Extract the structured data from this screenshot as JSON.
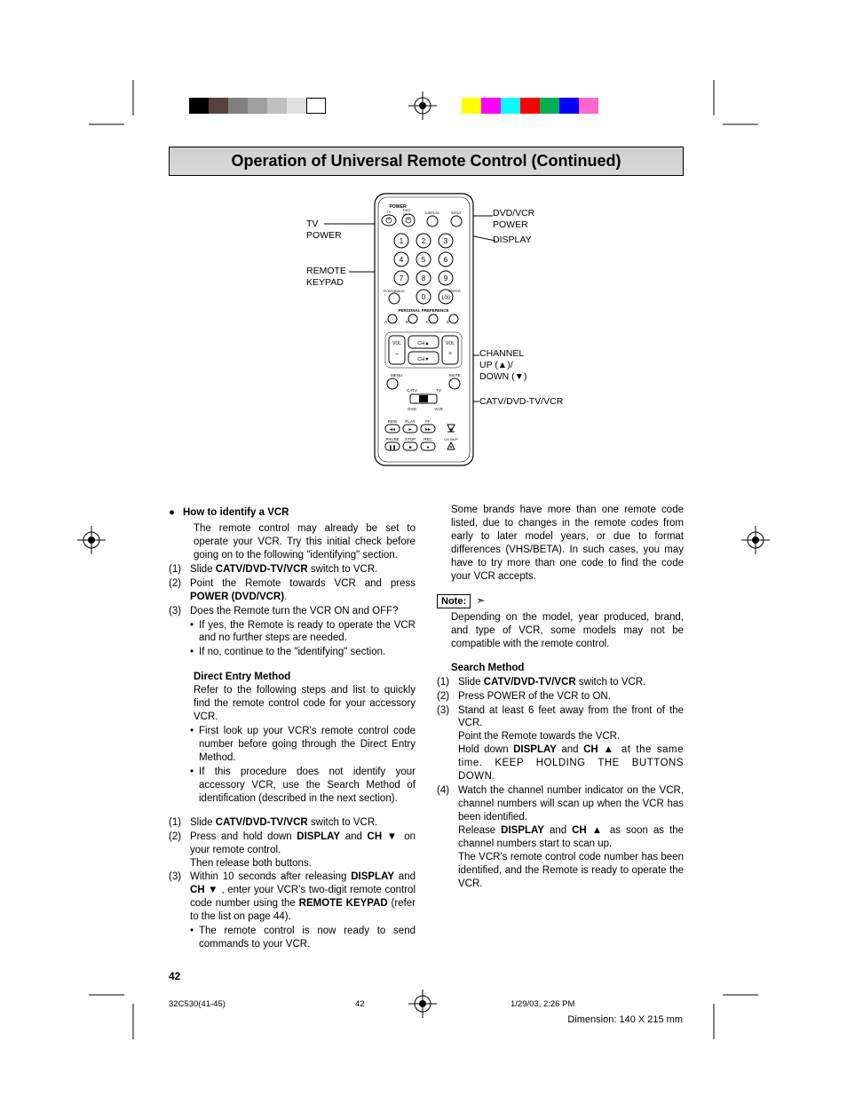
{
  "colorbars": {
    "bar1": [
      "#000000",
      "#5a3f3f",
      "#808080",
      "#a0a0a0",
      "#c0c0c0",
      "#e0e0e0",
      "#ffffff"
    ],
    "bar2": [
      "#ffff00",
      "#ff00ff",
      "#00ffff",
      "#ff0000",
      "#00b050",
      "#0000ff",
      "#ff66cc"
    ],
    "swatch_width": 22
  },
  "title": "Operation of Universal Remote Control (Continued)",
  "callouts": {
    "tv_power": "TV\nPOWER",
    "remote_keypad": "REMOTE\nKEYPAD",
    "dvd_vcr_power": "DVD/VCR\nPOWER",
    "display": "DISPLAY",
    "channel": "CHANNEL\nUP (▲)/\nDOWN (▼)",
    "catv": "CATV/DVD-TV/VCR"
  },
  "remote_labels": {
    "power": "POWER",
    "tv": "TV",
    "dvd": "DVD",
    "vcr": "VCR",
    "display": "DISPLAY",
    "input": "INPUT",
    "flashback": "FLASHBACK",
    "enter": "ENTER",
    "pref": "PERSONAL PREFERENCE",
    "a": "A",
    "b": "B",
    "c": "C",
    "d": "D",
    "vol_minus": "VOL\n–",
    "vol_plus": "VOL\n+",
    "ch_up": "CH▲",
    "ch_down": "CH▼",
    "menu": "MENU",
    "mute": "MUTE",
    "catv": "CATV",
    "tv2": "TV",
    "dvd2": "DVD",
    "vcr2": "VCR",
    "rew": "REW",
    "play": "PLAY",
    "ff": "FF",
    "pause": "PAUSE",
    "stop": "STOP",
    "rec": "REC",
    "chskip": "CH SKIP",
    "hundred": "100"
  },
  "left_col": {
    "h1": "How to identify a VCR",
    "p1": "The remote control may already be set to operate your VCR. Try this initial check before going on to the following \"identifying\" section.",
    "s1a": "Slide ",
    "s1b": "CATV/DVD-TV/VCR",
    "s1c": " switch to VCR.",
    "s2a": "Point the Remote towards VCR and press ",
    "s2b": "POWER (DVD/VCR)",
    "s2c": ".",
    "s3": "Does the Remote turn the VCR ON and OFF?",
    "s3y": "If yes, the Remote is ready to operate the VCR and no further steps are needed.",
    "s3n": "If no, continue to the \"identifying\" section.",
    "h2": "Direct Entry Method",
    "p2": "Refer to the following steps and list to quickly find the remote control code for your accessory VCR.",
    "b1": "First look up your VCR's remote control code number before going through the Direct Entry Method.",
    "b2": "If this procedure does not identify your accessory VCR, use the Search Method of identification (described in the next section).",
    "d1a": "Slide ",
    "d1b": "CATV/DVD-TV/VCR",
    "d1c": " switch to VCR.",
    "d2a": "Press and hold down ",
    "d2b": "DISPLAY",
    "d2c": " and ",
    "d2d": "CH",
    "d2e": " ▼ on your remote control.",
    "d2f": "Then release both buttons.",
    "d3a": "Within 10 seconds after releasing ",
    "d3b": "DISPLAY",
    "d3c": " and ",
    "d3d": "CH",
    "d3e": " ▼ , enter your VCR's two-digit remote control code number using the ",
    "d3f": "REMOTE KEYPAD",
    "d3g": " (refer to the list on page 44).",
    "d3h": "The remote control is now ready to send commands to your VCR."
  },
  "right_col": {
    "p1": "Some brands have more than one remote code listed, due to changes in the remote codes from early to later model years, or due to format differences (VHS/BETA). In such cases, you may have to try more than one code to find the code your VCR accepts.",
    "note_label": "Note:",
    "note": "Depending on the model, year produced, brand, and type of VCR, some models may not be compatible with the remote control.",
    "h1": "Search Method",
    "s1a": "Slide ",
    "s1b": "CATV/DVD-TV/VCR",
    "s1c": " switch to VCR.",
    "s2": "Press POWER of the VCR to ON.",
    "s3a": "Stand at least 6 feet away from the front of the VCR.",
    "s3b": "Point the Remote towards the VCR.",
    "s3c1": "Hold down ",
    "s3c2": "DISPLAY",
    "s3c3": " and ",
    "s3c4": "CH",
    "s3c5": " ▲ at the same time. KEEP HOLDING THE BUTTONS DOWN.",
    "s4a": "Watch the channel number indicator on the VCR, channel numbers will scan up when the VCR has been identified.",
    "s4b1": "Release ",
    "s4b2": "DISPLAY",
    "s4b3": " and ",
    "s4b4": "CH",
    "s4b5": " ▲ as soon as the channel numbers start to scan up.",
    "s4c": "The VCR's remote control code number has been identified, and the Remote is ready to operate the VCR."
  },
  "page_number": "42",
  "footer": {
    "doc": "32C530(41-45)",
    "page": "42",
    "date": "1/29/03, 2:26 PM",
    "dim": "Dimension: 140  X 215 mm"
  }
}
